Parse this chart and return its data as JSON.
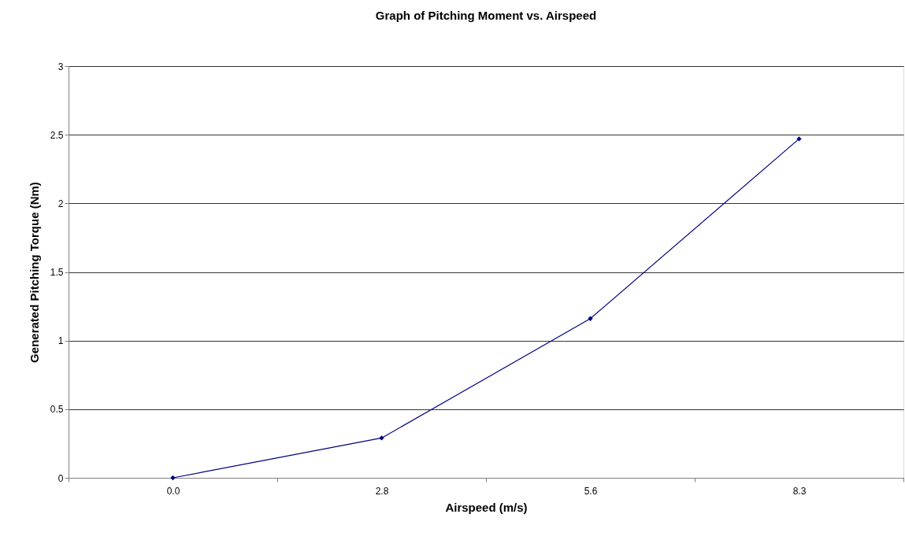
{
  "chart_data": {
    "type": "line",
    "title": "Graph of Pitching Moment vs. Airspeed",
    "xlabel": "Airspeed (m/s)",
    "ylabel": "Generated Pitching Torque (Nm)",
    "categories": [
      "0.0",
      "2.8",
      "5.6",
      "8.3"
    ],
    "series": [
      {
        "color": "#000080",
        "values": [
          0,
          0.29,
          1.16,
          2.47
        ]
      }
    ],
    "ylim": [
      0,
      3
    ],
    "yticks": [
      0,
      0.5,
      1,
      1.5,
      2,
      2.5,
      3
    ],
    "grid": "y",
    "marker": "diamond",
    "line_style": "solid"
  }
}
